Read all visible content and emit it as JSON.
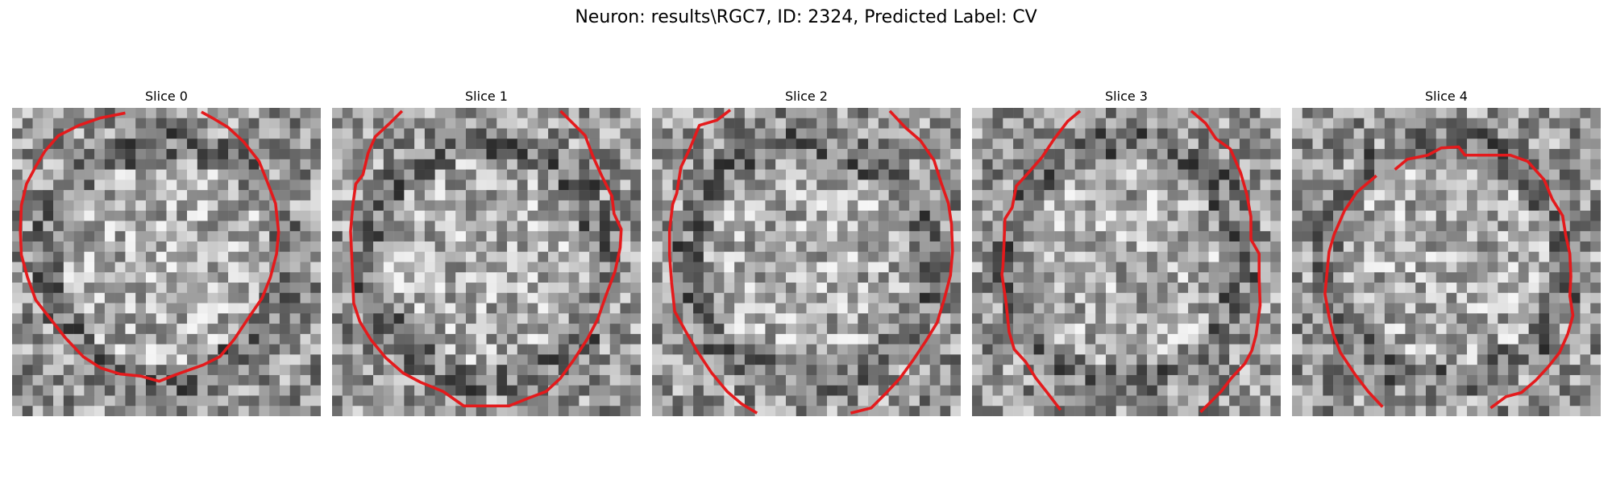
{
  "figure": {
    "title": "Neuron: results\\RGC7, ID: 2324, Predicted Label: CV",
    "contour_color": "#e41a1c"
  },
  "panels": [
    {
      "title": "Slice 0"
    },
    {
      "title": "Slice 1"
    },
    {
      "title": "Slice 2"
    },
    {
      "title": "Slice 3"
    },
    {
      "title": "Slice 4"
    }
  ]
}
